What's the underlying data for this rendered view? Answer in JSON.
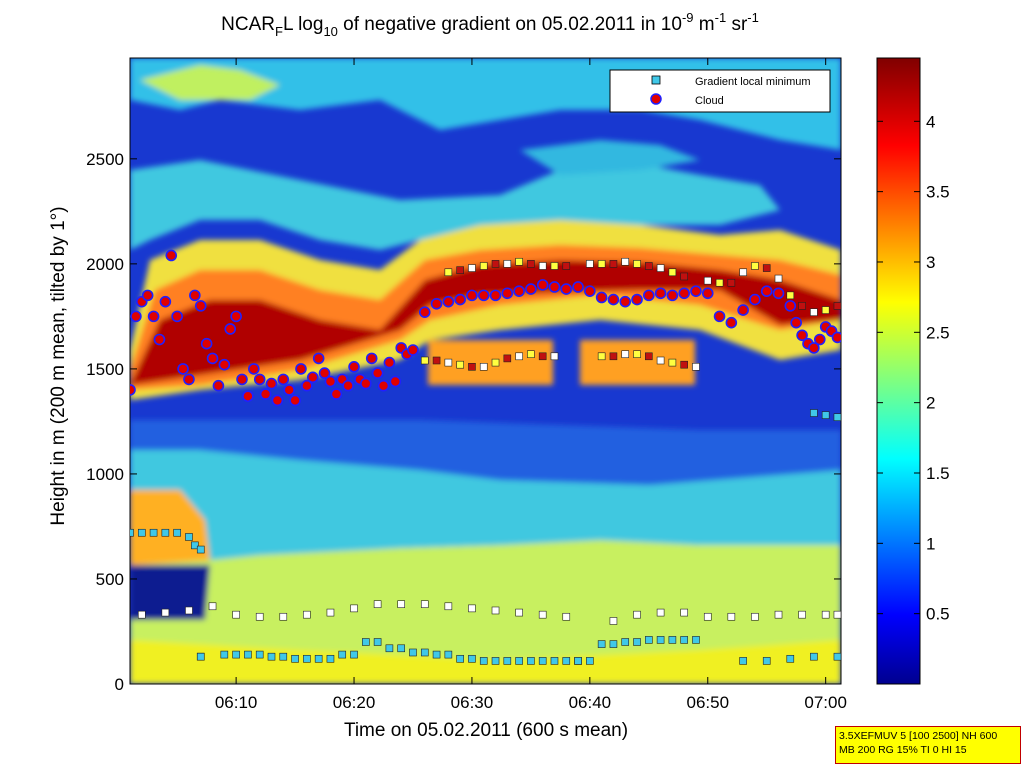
{
  "chart_data": {
    "type": "heatmap",
    "title": {
      "part1": "NCAR",
      "sub1": "F",
      "part2": "L log",
      "sub2": "10",
      "part3": " of negative gradient on 05.02.2011 in 10",
      "sup1": "-9",
      "part4": " m",
      "sup2": "-1",
      "part5": " sr",
      "sup3": "-1"
    },
    "xlabel": "Time on 05.02.2011 (600 s mean)",
    "ylabel": "Height in m (200 m mean, tilted by 1°)",
    "x_ticks": [
      "06:10",
      "06:20",
      "06:30",
      "06:40",
      "06:50",
      "07:00"
    ],
    "x_tick_minutes": [
      370,
      380,
      390,
      400,
      410,
      420
    ],
    "xlim_minutes": [
      361,
      421.3
    ],
    "y_ticks": [
      0,
      500,
      1000,
      1500,
      2000,
      2500
    ],
    "ylim": [
      0,
      2980
    ],
    "colorbar": {
      "ticks": [
        "0.5",
        "1",
        "1.5",
        "2",
        "2.5",
        "3",
        "3.5",
        "4"
      ],
      "tick_values": [
        0.5,
        1,
        1.5,
        2,
        2.5,
        3,
        3.5,
        4
      ],
      "range": [
        0,
        4.45
      ],
      "colormap": "jet"
    },
    "legend": {
      "placement": "top-right",
      "entries": [
        {
          "label": "Gradient local minimum",
          "marker": "square",
          "color": "#40c8e8"
        },
        {
          "label": "Cloud",
          "marker": "circle",
          "color": "#e00000",
          "edge": "#2020ff"
        }
      ]
    },
    "series": [
      {
        "name": "Cloud",
        "x": [
          361.0,
          361.5,
          362.0,
          362.5,
          363.0,
          363.5,
          364.0,
          364.5,
          365.0,
          365.5,
          366.0,
          366.5,
          367.0,
          367.5,
          368.0,
          368.5,
          369.0,
          369.5,
          370.0,
          370.5,
          371.0,
          371.5,
          372.0,
          372.5,
          373.0,
          373.5,
          374.0,
          374.5,
          375.0,
          375.5,
          376.0,
          376.5,
          377.0,
          377.5,
          378.0,
          378.5,
          379.0,
          379.5,
          380.0,
          380.5,
          381.0,
          381.5,
          382.0,
          382.5,
          383.0,
          383.5,
          384.0,
          384.5,
          385.0,
          386.0,
          387.0,
          388.0,
          389.0,
          390.0,
          391.0,
          392.0,
          393.0,
          394.0,
          395.0,
          396.0,
          397.0,
          398.0,
          399.0,
          400.0,
          401.0,
          402.0,
          403.0,
          404.0,
          405.0,
          406.0,
          407.0,
          408.0,
          409.0,
          410.0,
          411.0,
          412.0,
          413.0,
          414.0,
          415.0,
          416.0,
          417.0,
          417.5,
          418.0,
          418.5,
          419.0,
          419.5,
          420.0,
          420.5,
          421.0
        ],
        "y": [
          1400,
          1750,
          1820,
          1850,
          1750,
          1640,
          1820,
          2040,
          1750,
          1500,
          1450,
          1850,
          1800,
          1620,
          1550,
          1420,
          1520,
          1690,
          1750,
          1450,
          1370,
          1500,
          1450,
          1380,
          1430,
          1350,
          1450,
          1400,
          1350,
          1500,
          1420,
          1460,
          1550,
          1480,
          1440,
          1380,
          1450,
          1420,
          1510,
          1450,
          1430,
          1550,
          1480,
          1420,
          1530,
          1440,
          1600,
          1570,
          1590,
          1770,
          1810,
          1820,
          1830,
          1850,
          1850,
          1850,
          1860,
          1870,
          1880,
          1900,
          1890,
          1880,
          1890,
          1870,
          1840,
          1830,
          1820,
          1830,
          1850,
          1860,
          1850,
          1860,
          1870,
          1860,
          1750,
          1720,
          1780,
          1830,
          1870,
          1860,
          1800,
          1720,
          1660,
          1620,
          1600,
          1640,
          1700,
          1680,
          1650
        ]
      },
      {
        "name": "Gradient local minimum",
        "x": [
          361.0,
          362.0,
          363.0,
          364.0,
          365.0,
          366.0,
          366.5,
          367.0,
          362.0,
          364.0,
          366.0,
          368.0,
          370.0,
          372.0,
          374.0,
          376.0,
          378.0,
          380.0,
          382.0,
          384.0,
          386.0,
          388.0,
          390.0,
          392.0,
          394.0,
          396.0,
          398.0,
          402.0,
          404.0,
          406.0,
          408.0,
          410.0,
          412.0,
          414.0,
          416.0,
          418.0,
          420.0,
          421.0,
          367.0,
          370.0,
          372.0,
          374.0,
          376.0,
          378.0,
          380.0,
          382.0,
          384.0,
          386.0,
          388.0,
          390.0,
          392.0,
          394.0,
          396.0,
          398.0,
          399.0,
          401.0,
          403.0,
          405.0,
          407.0,
          409.0,
          367.0,
          369.0,
          371.0,
          373.0,
          375.0,
          377.0,
          379.0,
          381.0,
          383.0,
          385.0,
          387.0,
          389.0,
          391.0,
          393.0,
          395.0,
          397.0,
          399.0,
          400.0,
          402.0,
          404.0,
          406.0,
          408.0,
          413.0,
          415.0,
          417.0,
          419.0,
          421.0,
          386.0,
          387.0,
          388.0,
          389.0,
          390.0,
          391.0,
          392.0,
          393.0,
          394.0,
          395.0,
          396.0,
          397.0,
          401.0,
          402.0,
          403.0,
          404.0,
          405.0,
          406.0,
          407.0,
          408.0,
          409.0,
          419.0,
          420.0,
          421.0,
          388.0,
          389.0,
          390.0,
          391.0,
          392.0,
          393.0,
          394.0,
          395.0,
          396.0,
          397.0,
          398.0,
          400.0,
          401.0,
          402.0,
          403.0,
          404.0,
          405.0,
          406.0,
          407.0,
          408.0,
          410.0,
          411.0,
          412.0,
          413.0,
          414.0,
          415.0,
          416.0,
          417.0,
          418.0,
          419.0,
          420.0,
          421.0
        ],
        "y": [
          720,
          720,
          720,
          720,
          720,
          700,
          660,
          640,
          330,
          340,
          350,
          370,
          330,
          320,
          320,
          330,
          340,
          360,
          380,
          380,
          380,
          370,
          360,
          350,
          340,
          330,
          320,
          300,
          330,
          340,
          340,
          320,
          320,
          320,
          330,
          330,
          330,
          330,
          130,
          140,
          140,
          130,
          120,
          120,
          140,
          200,
          170,
          150,
          140,
          120,
          110,
          110,
          110,
          110,
          110,
          190,
          200,
          210,
          210,
          210,
          130,
          140,
          140,
          130,
          120,
          120,
          140,
          200,
          170,
          150,
          140,
          120,
          110,
          110,
          110,
          110,
          110,
          110,
          190,
          200,
          210,
          210,
          110,
          110,
          120,
          130,
          130,
          1540,
          1540,
          1530,
          1520,
          1510,
          1510,
          1530,
          1550,
          1560,
          1570,
          1560,
          1560,
          1560,
          1560,
          1570,
          1570,
          1560,
          1540,
          1530,
          1520,
          1510,
          1290,
          1280,
          1270,
          1960,
          1970,
          1980,
          1990,
          2000,
          2000,
          2010,
          2000,
          1990,
          1990,
          1990,
          2000,
          2000,
          2000,
          2010,
          2000,
          1990,
          1980,
          1960,
          1940,
          1920,
          1910,
          1910,
          1960,
          1990,
          1980,
          1930,
          1850,
          1800,
          1770,
          1780,
          1800
        ]
      }
    ]
  },
  "info_box": {
    "line1": "3.5XEFMUV 5 [100 2500] NH 600",
    "line2": "MB 200 RG 15% TI 0 HI 15"
  }
}
